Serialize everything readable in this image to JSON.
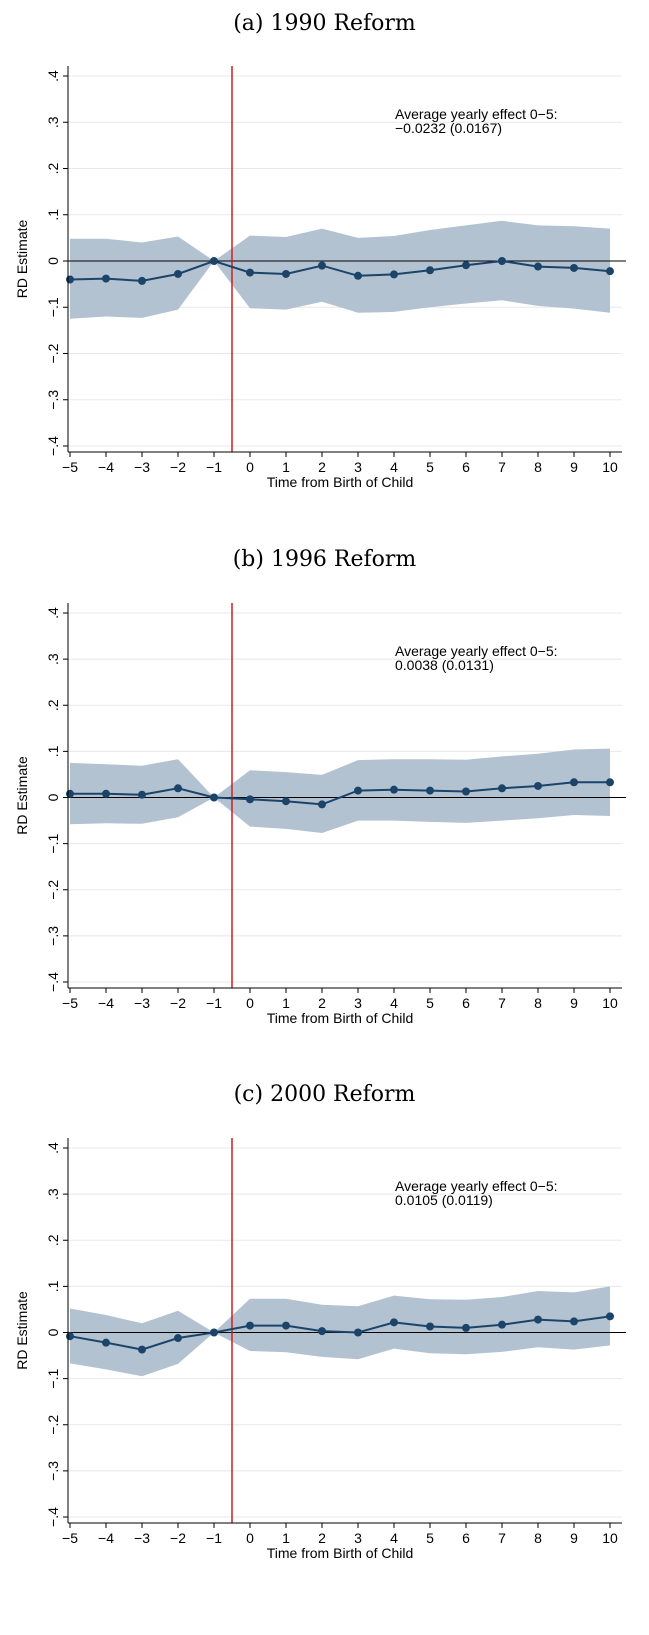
{
  "chart_data": [
    {
      "type": "line",
      "title": "(a) 1990 Reform",
      "xlabel": "Time from Birth of Child",
      "ylabel": "RD Estimate",
      "annotation": [
        "Average yearly effect 0−5:",
        "−0.0232 (0.0167)"
      ],
      "x": [
        -5,
        -4,
        -3,
        -2,
        -1,
        0,
        1,
        2,
        3,
        4,
        5,
        6,
        7,
        8,
        9,
        10
      ],
      "y": [
        -0.04,
        -0.038,
        -0.043,
        -0.028,
        0.0,
        -0.025,
        -0.028,
        -0.01,
        -0.032,
        -0.029,
        -0.02,
        -0.009,
        0.0,
        -0.012,
        -0.015,
        -0.022
      ],
      "ci_lower": [
        -0.125,
        -0.12,
        -0.123,
        -0.105,
        0.0,
        -0.102,
        -0.105,
        -0.088,
        -0.112,
        -0.11,
        -0.1,
        -0.092,
        -0.085,
        -0.097,
        -0.103,
        -0.112
      ],
      "ci_upper": [
        0.048,
        0.048,
        0.04,
        0.053,
        0.0,
        0.055,
        0.052,
        0.07,
        0.05,
        0.054,
        0.067,
        0.077,
        0.087,
        0.077,
        0.075,
        0.07
      ],
      "xlim": [
        -5,
        10
      ],
      "ylim": [
        -0.4,
        0.4
      ],
      "xticks": [
        "−5",
        "−4",
        "−3",
        "−2",
        "−1",
        "0",
        "1",
        "2",
        "3",
        "4",
        "5",
        "6",
        "7",
        "8",
        "9",
        "10"
      ],
      "yticks": [
        ".4",
        ".3",
        ".2",
        ".1",
        "0",
        "−.1",
        "−.2",
        "−.3",
        "−.4"
      ],
      "vline_x": -0.5,
      "grid": "horizontal",
      "colors": {
        "line": "#1c4469",
        "ci": "#b3c2d1",
        "vline": "#cc1f1f",
        "grid": "#e8e8e8"
      }
    },
    {
      "type": "line",
      "title": "(b) 1996 Reform",
      "xlabel": "Time from Birth of Child",
      "ylabel": "RD Estimate",
      "annotation": [
        "Average yearly effect 0−5:",
        "0.0038 (0.0131)"
      ],
      "x": [
        -5,
        -4,
        -3,
        -2,
        -1,
        0,
        1,
        2,
        3,
        4,
        5,
        6,
        7,
        8,
        9,
        10
      ],
      "y": [
        0.008,
        0.008,
        0.006,
        0.02,
        0.0,
        -0.004,
        -0.008,
        -0.015,
        0.015,
        0.017,
        0.015,
        0.013,
        0.02,
        0.025,
        0.033,
        0.033
      ],
      "ci_lower": [
        -0.058,
        -0.056,
        -0.057,
        -0.043,
        0.0,
        -0.063,
        -0.068,
        -0.077,
        -0.05,
        -0.05,
        -0.053,
        -0.055,
        -0.05,
        -0.045,
        -0.038,
        -0.04
      ],
      "ci_upper": [
        0.075,
        0.072,
        0.069,
        0.083,
        0.0,
        0.059,
        0.055,
        0.049,
        0.081,
        0.083,
        0.083,
        0.082,
        0.089,
        0.095,
        0.104,
        0.106
      ],
      "xlim": [
        -5,
        10
      ],
      "ylim": [
        -0.4,
        0.4
      ],
      "xticks": [
        "−5",
        "−4",
        "−3",
        "−2",
        "−1",
        "0",
        "1",
        "2",
        "3",
        "4",
        "5",
        "6",
        "7",
        "8",
        "9",
        "10"
      ],
      "yticks": [
        ".4",
        ".3",
        ".2",
        ".1",
        "0",
        "−.1",
        "−.2",
        "−.3",
        "−.4"
      ],
      "vline_x": -0.5,
      "grid": "horizontal",
      "colors": {
        "line": "#1c4469",
        "ci": "#b3c2d1",
        "vline": "#cc1f1f",
        "grid": "#e8e8e8"
      }
    },
    {
      "type": "line",
      "title": "(c) 2000 Reform",
      "xlabel": "Time from Birth of Child",
      "ylabel": "RD Estimate",
      "annotation": [
        "Average yearly effect 0−5:",
        "0.0105 (0.0119)"
      ],
      "x": [
        -5,
        -4,
        -3,
        -2,
        -1,
        0,
        1,
        2,
        3,
        4,
        5,
        6,
        7,
        8,
        9,
        10
      ],
      "y": [
        -0.008,
        -0.022,
        -0.037,
        -0.012,
        0.0,
        0.015,
        0.015,
        0.003,
        0.0,
        0.022,
        0.013,
        0.01,
        0.017,
        0.028,
        0.024,
        0.035
      ],
      "ci_lower": [
        -0.067,
        -0.08,
        -0.095,
        -0.068,
        0.0,
        -0.04,
        -0.043,
        -0.053,
        -0.058,
        -0.035,
        -0.045,
        -0.047,
        -0.042,
        -0.032,
        -0.037,
        -0.028
      ],
      "ci_upper": [
        0.052,
        0.038,
        0.02,
        0.047,
        0.0,
        0.073,
        0.073,
        0.06,
        0.057,
        0.08,
        0.072,
        0.071,
        0.077,
        0.09,
        0.087,
        0.1
      ],
      "xlim": [
        -5,
        10
      ],
      "ylim": [
        -0.4,
        0.4
      ],
      "xticks": [
        "−5",
        "−4",
        "−3",
        "−2",
        "−1",
        "0",
        "1",
        "2",
        "3",
        "4",
        "5",
        "6",
        "7",
        "8",
        "9",
        "10"
      ],
      "yticks": [
        ".4",
        ".3",
        ".2",
        ".1",
        "0",
        "−.1",
        "−.2",
        "−.3",
        "−.4"
      ],
      "vline_x": -0.5,
      "grid": "horizontal",
      "colors": {
        "line": "#1c4469",
        "ci": "#b3c2d1",
        "vline": "#cc1f1f",
        "grid": "#e8e8e8"
      }
    }
  ]
}
